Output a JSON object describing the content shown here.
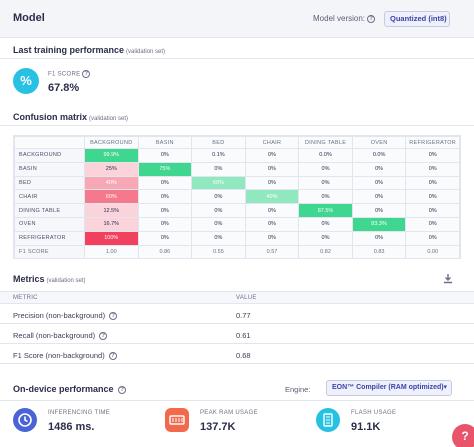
{
  "header": {
    "title": "Model",
    "model_version_label": "Model version:",
    "model_version_value": "Quantized (int8)"
  },
  "training": {
    "title": "Last training performance",
    "subtitle": "(validation set)",
    "f1_label": "F1 SCORE",
    "f1_value": "67.8%",
    "f1_icon_glyph": "%"
  },
  "confusion": {
    "title": "Confusion matrix",
    "subtitle": "(validation set)",
    "columns": [
      "",
      "BACKGROUND",
      "BASIN",
      "BED",
      "CHAIR",
      "DINING TABLE",
      "OVEN",
      "REFRIGERATOR"
    ],
    "rows": [
      {
        "label": "BACKGROUND",
        "cells": [
          "99.9%",
          "0%",
          "0.1%",
          "0%",
          "0.0%",
          "0.0%",
          "0%"
        ]
      },
      {
        "label": "BASIN",
        "cells": [
          "25%",
          "75%",
          "0%",
          "0%",
          "0%",
          "0%",
          "0%"
        ]
      },
      {
        "label": "BED",
        "cells": [
          "40%",
          "0%",
          "60%",
          "0%",
          "0%",
          "0%",
          "0%"
        ]
      },
      {
        "label": "CHAIR",
        "cells": [
          "60%",
          "0%",
          "0%",
          "40%",
          "0%",
          "0%",
          "0%"
        ]
      },
      {
        "label": "DINING TABLE",
        "cells": [
          "12.5%",
          "0%",
          "0%",
          "0%",
          "87.5%",
          "0%",
          "0%"
        ]
      },
      {
        "label": "OVEN",
        "cells": [
          "16.7%",
          "0%",
          "0%",
          "0%",
          "0%",
          "83.3%",
          "0%"
        ]
      },
      {
        "label": "REFRIGERATOR",
        "cells": [
          "100%",
          "0%",
          "0%",
          "0%",
          "0%",
          "0%",
          "0%"
        ]
      }
    ],
    "f1_row": {
      "label": "F1 SCORE",
      "cells": [
        "1.00",
        "0.86",
        "0.55",
        "0.57",
        "0.82",
        "0.83",
        "0.00"
      ]
    }
  },
  "metrics": {
    "title": "Metrics",
    "subtitle": "(validation set)",
    "col_metric": "METRIC",
    "col_value": "VALUE",
    "rows": [
      {
        "name": "Precision (non-background)",
        "value": "0.77"
      },
      {
        "name": "Recall (non-background)",
        "value": "0.61"
      },
      {
        "name": "F1 Score (non-background)",
        "value": "0.68"
      }
    ]
  },
  "ondevice": {
    "title": "On-device performance",
    "engine_label": "Engine:",
    "engine_value": "EON™ Compiler (RAM optimized)",
    "items": [
      {
        "label": "INFERENCING TIME",
        "value": "1486 ms.",
        "icon": "clock-icon"
      },
      {
        "label": "PEAK RAM USAGE",
        "value": "137.7K",
        "icon": "ram-icon"
      },
      {
        "label": "FLASH USAGE",
        "value": "91.1K",
        "icon": "flash-icon"
      }
    ]
  },
  "colors": {
    "green_strong": "#3fd68f",
    "green_light": "#8fe8be",
    "red_strong": "#f2405f",
    "red_mid": "#f5788d",
    "red_light": "#f8a8b5",
    "red_faint": "#fbd3da",
    "cyan": "#27c1e4",
    "blue": "#4a63d6",
    "orange": "#f26a4b"
  }
}
